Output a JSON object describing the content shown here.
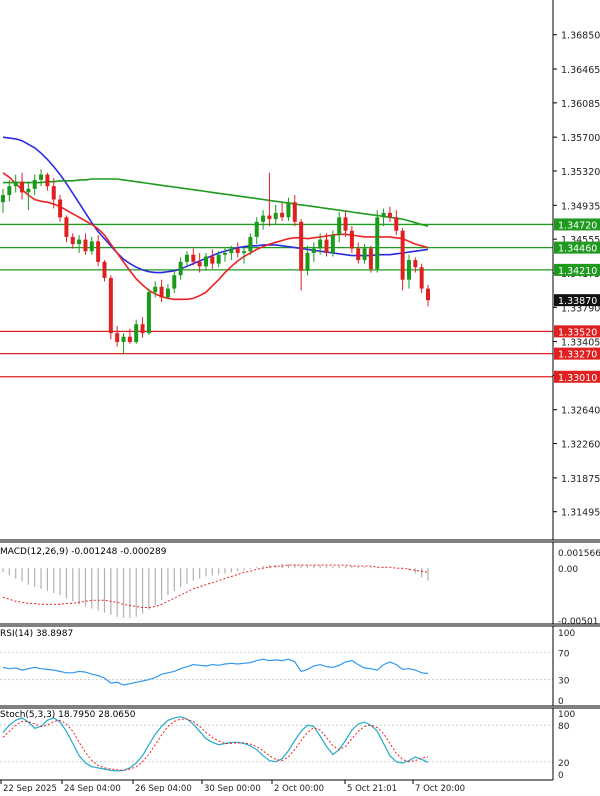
{
  "colors": {
    "bull": "#1a9a1a",
    "bear": "#e02020",
    "ma_blue": "#2a2ae6",
    "ma_green": "#1f9a1f",
    "ma_red": "#ee2222",
    "support_line": "#e02020",
    "resistance_line": "#1f9a1f",
    "current_price_label": "#111111",
    "axis_text": "#222222",
    "macd_hist": "#b0b0b0",
    "macd_signal": "#ee2222",
    "rsi_line": "#3399ee",
    "stoch_main": "#22aacc",
    "stoch_signal": "#ee2222"
  },
  "chart_data": [
    {
      "type": "candlestick",
      "title": "",
      "price_ticks": [
        "1.36850",
        "1.36465",
        "1.36085",
        "1.35700",
        "1.35320",
        "1.34935",
        "1.34555",
        "1.34175",
        "1.33790",
        "1.33405",
        "1.33025",
        "1.32640",
        "1.32260",
        "1.31875",
        "1.31495"
      ],
      "ylim": [
        1.312,
        1.3715
      ],
      "x_labels": [
        "22 Sep 2025",
        "24 Sep 04:00",
        "26 Sep 04:00",
        "30 Sep 00:00",
        "2 Oct 00:00",
        "5 Oct 21:01",
        "7 Oct 20:00"
      ],
      "horizontal_levels": [
        {
          "value": 1.3472,
          "label": "1.34720",
          "kind": "resistance"
        },
        {
          "value": 1.3446,
          "label": "1.34460",
          "kind": "resistance"
        },
        {
          "value": 1.3421,
          "label": "1.34210",
          "kind": "resistance"
        },
        {
          "value": 1.3352,
          "label": "1.33520",
          "kind": "support"
        },
        {
          "value": 1.3327,
          "label": "1.33270",
          "kind": "support"
        },
        {
          "value": 1.3301,
          "label": "1.33010",
          "kind": "support"
        }
      ],
      "current_price": {
        "value": 1.3387,
        "label": "1.33870"
      },
      "candles": [
        {
          "o": 1.3497,
          "h": 1.3512,
          "l": 1.3485,
          "c": 1.3505
        },
        {
          "o": 1.3505,
          "h": 1.3522,
          "l": 1.3498,
          "c": 1.3515
        },
        {
          "o": 1.3515,
          "h": 1.3528,
          "l": 1.3508,
          "c": 1.352
        },
        {
          "o": 1.352,
          "h": 1.353,
          "l": 1.35,
          "c": 1.3508
        },
        {
          "o": 1.3508,
          "h": 1.352,
          "l": 1.3488,
          "c": 1.3512
        },
        {
          "o": 1.3512,
          "h": 1.3528,
          "l": 1.3505,
          "c": 1.3522
        },
        {
          "o": 1.3522,
          "h": 1.3534,
          "l": 1.3515,
          "c": 1.3528
        },
        {
          "o": 1.3528,
          "h": 1.353,
          "l": 1.351,
          "c": 1.3515
        },
        {
          "o": 1.3515,
          "h": 1.3524,
          "l": 1.349,
          "c": 1.35
        },
        {
          "o": 1.35,
          "h": 1.3505,
          "l": 1.3475,
          "c": 1.348
        },
        {
          "o": 1.348,
          "h": 1.3482,
          "l": 1.3452,
          "c": 1.3458
        },
        {
          "o": 1.3458,
          "h": 1.3462,
          "l": 1.3445,
          "c": 1.345
        },
        {
          "o": 1.345,
          "h": 1.346,
          "l": 1.344,
          "c": 1.3455
        },
        {
          "o": 1.3455,
          "h": 1.3462,
          "l": 1.3438,
          "c": 1.3442
        },
        {
          "o": 1.3442,
          "h": 1.3458,
          "l": 1.3438,
          "c": 1.3453
        },
        {
          "o": 1.3453,
          "h": 1.346,
          "l": 1.3425,
          "c": 1.343
        },
        {
          "o": 1.343,
          "h": 1.3432,
          "l": 1.3408,
          "c": 1.3412
        },
        {
          "o": 1.3412,
          "h": 1.3415,
          "l": 1.3343,
          "c": 1.335
        },
        {
          "o": 1.335,
          "h": 1.3358,
          "l": 1.3335,
          "c": 1.334
        },
        {
          "o": 1.334,
          "h": 1.335,
          "l": 1.3326,
          "c": 1.3346
        },
        {
          "o": 1.3346,
          "h": 1.3355,
          "l": 1.3338,
          "c": 1.334
        },
        {
          "o": 1.334,
          "h": 1.3365,
          "l": 1.3338,
          "c": 1.336
        },
        {
          "o": 1.336,
          "h": 1.3368,
          "l": 1.3345,
          "c": 1.335
        },
        {
          "o": 1.335,
          "h": 1.34,
          "l": 1.3348,
          "c": 1.3396
        },
        {
          "o": 1.3396,
          "h": 1.3408,
          "l": 1.339,
          "c": 1.3402
        },
        {
          "o": 1.3402,
          "h": 1.341,
          "l": 1.3385,
          "c": 1.339
        },
        {
          "o": 1.339,
          "h": 1.3405,
          "l": 1.3388,
          "c": 1.34
        },
        {
          "o": 1.34,
          "h": 1.342,
          "l": 1.3395,
          "c": 1.3415
        },
        {
          "o": 1.3415,
          "h": 1.3435,
          "l": 1.341,
          "c": 1.343
        },
        {
          "o": 1.343,
          "h": 1.3442,
          "l": 1.3425,
          "c": 1.3438
        },
        {
          "o": 1.3438,
          "h": 1.3445,
          "l": 1.3426,
          "c": 1.343
        },
        {
          "o": 1.343,
          "h": 1.344,
          "l": 1.3418,
          "c": 1.3425
        },
        {
          "o": 1.3425,
          "h": 1.344,
          "l": 1.342,
          "c": 1.3436
        },
        {
          "o": 1.3436,
          "h": 1.3444,
          "l": 1.3422,
          "c": 1.3428
        },
        {
          "o": 1.3428,
          "h": 1.3442,
          "l": 1.3424,
          "c": 1.3438
        },
        {
          "o": 1.3438,
          "h": 1.3446,
          "l": 1.343,
          "c": 1.344
        },
        {
          "o": 1.344,
          "h": 1.3448,
          "l": 1.3432,
          "c": 1.3445
        },
        {
          "o": 1.3445,
          "h": 1.3452,
          "l": 1.3435,
          "c": 1.344
        },
        {
          "o": 1.344,
          "h": 1.3446,
          "l": 1.3428,
          "c": 1.3442
        },
        {
          "o": 1.3442,
          "h": 1.3462,
          "l": 1.3438,
          "c": 1.3458
        },
        {
          "o": 1.3458,
          "h": 1.348,
          "l": 1.345,
          "c": 1.3475
        },
        {
          "o": 1.3475,
          "h": 1.3488,
          "l": 1.3466,
          "c": 1.3482
        },
        {
          "o": 1.3482,
          "h": 1.353,
          "l": 1.347,
          "c": 1.3478
        },
        {
          "o": 1.3478,
          "h": 1.3494,
          "l": 1.3472,
          "c": 1.3485
        },
        {
          "o": 1.3485,
          "h": 1.3496,
          "l": 1.3476,
          "c": 1.348
        },
        {
          "o": 1.348,
          "h": 1.3502,
          "l": 1.3476,
          "c": 1.3497
        },
        {
          "o": 1.3497,
          "h": 1.3505,
          "l": 1.347,
          "c": 1.3475
        },
        {
          "o": 1.3475,
          "h": 1.3478,
          "l": 1.3398,
          "c": 1.342
        },
        {
          "o": 1.342,
          "h": 1.3448,
          "l": 1.3415,
          "c": 1.344
        },
        {
          "o": 1.344,
          "h": 1.3452,
          "l": 1.343,
          "c": 1.3445
        },
        {
          "o": 1.3445,
          "h": 1.3462,
          "l": 1.3438,
          "c": 1.3455
        },
        {
          "o": 1.3455,
          "h": 1.3462,
          "l": 1.3436,
          "c": 1.344
        },
        {
          "o": 1.344,
          "h": 1.3465,
          "l": 1.3436,
          "c": 1.346
        },
        {
          "o": 1.346,
          "h": 1.3486,
          "l": 1.3452,
          "c": 1.348
        },
        {
          "o": 1.348,
          "h": 1.3487,
          "l": 1.3458,
          "c": 1.3465
        },
        {
          "o": 1.3465,
          "h": 1.347,
          "l": 1.344,
          "c": 1.3445
        },
        {
          "o": 1.3445,
          "h": 1.3452,
          "l": 1.3428,
          "c": 1.3432
        },
        {
          "o": 1.3432,
          "h": 1.345,
          "l": 1.3428,
          "c": 1.3445
        },
        {
          "o": 1.3445,
          "h": 1.3448,
          "l": 1.3418,
          "c": 1.3422
        },
        {
          "o": 1.3422,
          "h": 1.3488,
          "l": 1.3418,
          "c": 1.348
        },
        {
          "o": 1.348,
          "h": 1.349,
          "l": 1.347,
          "c": 1.3485
        },
        {
          "o": 1.3485,
          "h": 1.3492,
          "l": 1.3475,
          "c": 1.348
        },
        {
          "o": 1.348,
          "h": 1.3488,
          "l": 1.346,
          "c": 1.3465
        },
        {
          "o": 1.3465,
          "h": 1.3468,
          "l": 1.3398,
          "c": 1.341
        },
        {
          "o": 1.341,
          "h": 1.3438,
          "l": 1.34,
          "c": 1.3432
        },
        {
          "o": 1.3432,
          "h": 1.3435,
          "l": 1.3418,
          "c": 1.3424
        },
        {
          "o": 1.3424,
          "h": 1.3428,
          "l": 1.3395,
          "c": 1.34
        },
        {
          "o": 1.34,
          "h": 1.3404,
          "l": 1.338,
          "c": 1.3387
        }
      ],
      "moving_averages": [
        {
          "color_key": "ma_blue",
          "values": [
            1.357,
            1.3569,
            1.3568,
            1.3566,
            1.3562,
            1.3558,
            1.3552,
            1.3545,
            1.3537,
            1.3528,
            1.3518,
            1.3507,
            1.3496,
            1.3485,
            1.3474,
            1.3464,
            1.3456,
            1.3448,
            1.344,
            1.3433,
            1.3428,
            1.3424,
            1.3421,
            1.3419,
            1.3418,
            1.3418,
            1.3419,
            1.342,
            1.3422,
            1.3425,
            1.3428,
            1.3431,
            1.3434,
            1.3437,
            1.344,
            1.3442,
            1.3444,
            1.3446,
            1.3447,
            1.3448,
            1.3448,
            1.3449,
            1.3449,
            1.3449,
            1.3448,
            1.3447,
            1.3446,
            1.3445,
            1.3444,
            1.3443,
            1.3442,
            1.3441,
            1.344,
            1.3439,
            1.3438,
            1.3437,
            1.3437,
            1.3437,
            1.3437,
            1.3438,
            1.3438,
            1.3438,
            1.3439,
            1.344,
            1.3441,
            1.3442,
            1.3443,
            1.3444
          ]
        },
        {
          "color_key": "ma_green",
          "values": [
            1.3519,
            1.3519,
            1.3519,
            1.3519,
            1.3519,
            1.3519,
            1.3519,
            1.352,
            1.352,
            1.3521,
            1.3521,
            1.3521,
            1.3522,
            1.3522,
            1.3523,
            1.3523,
            1.3523,
            1.3523,
            1.3523,
            1.3522,
            1.3521,
            1.352,
            1.3519,
            1.3518,
            1.3517,
            1.3516,
            1.3515,
            1.3514,
            1.3513,
            1.3512,
            1.3511,
            1.351,
            1.3509,
            1.3508,
            1.3507,
            1.3506,
            1.3505,
            1.3504,
            1.3503,
            1.3502,
            1.3501,
            1.35,
            1.3499,
            1.3498,
            1.3497,
            1.3496,
            1.3495,
            1.3494,
            1.3493,
            1.3492,
            1.3491,
            1.349,
            1.3489,
            1.3488,
            1.3487,
            1.3486,
            1.3485,
            1.3484,
            1.3483,
            1.3482,
            1.3481,
            1.348,
            1.3479,
            1.3478,
            1.3476,
            1.3474,
            1.3472,
            1.347
          ]
        },
        {
          "color_key": "ma_red",
          "values": [
            1.353,
            1.3525,
            1.3518,
            1.3511,
            1.3505,
            1.35,
            1.3498,
            1.3497,
            1.3495,
            1.3492,
            1.3488,
            1.3484,
            1.348,
            1.3476,
            1.3472,
            1.3467,
            1.346,
            1.345,
            1.344,
            1.343,
            1.342,
            1.3411,
            1.3404,
            1.3398,
            1.3394,
            1.3391,
            1.3389,
            1.3388,
            1.3388,
            1.3388,
            1.3389,
            1.3392,
            1.3396,
            1.3403,
            1.341,
            1.3418,
            1.3425,
            1.3431,
            1.3436,
            1.344,
            1.3444,
            1.3447,
            1.345,
            1.3452,
            1.3454,
            1.3456,
            1.3457,
            1.3457,
            1.3456,
            1.3457,
            1.3458,
            1.3459,
            1.346,
            1.3461,
            1.3461,
            1.346,
            1.3459,
            1.3458,
            1.3458,
            1.3458,
            1.3458,
            1.3458,
            1.3457,
            1.3456,
            1.3453,
            1.345,
            1.3448,
            1.3446
          ]
        }
      ]
    },
    {
      "type": "bar",
      "label": "MACD(12,26,9) -0.001248 -0.000289",
      "y_ticks": [
        "0.001566",
        "0.00",
        "-0.00501"
      ],
      "ylim": [
        -0.00501,
        0.001566
      ],
      "values": [
        -0.0004,
        -0.0007,
        -0.001,
        -0.0013,
        -0.0016,
        -0.0018,
        -0.002,
        -0.0022,
        -0.0024,
        -0.0026,
        -0.0029,
        -0.0032,
        -0.0035,
        -0.0037,
        -0.0039,
        -0.0041,
        -0.0043,
        -0.0045,
        -0.0047,
        -0.0048,
        -0.0048,
        -0.0047,
        -0.0044,
        -0.004,
        -0.0036,
        -0.0031,
        -0.0026,
        -0.0022,
        -0.0018,
        -0.0015,
        -0.0012,
        -0.001,
        -0.0008,
        -0.0007,
        -0.0006,
        -0.0005,
        -0.0004,
        -0.0003,
        -0.0002,
        -0.0001,
        0.0001,
        0.0002,
        0.0003,
        0.0003,
        0.0004,
        0.0004,
        0.0004,
        0.0003,
        0.0003,
        0.0003,
        0.0003,
        0.0002,
        0.0002,
        0.0002,
        0.0002,
        0.0002,
        0.0001,
        0.0001,
        0.0001,
        0.0001,
        0.0001,
        0.0,
        0.0,
        -0.0001,
        -0.0002,
        -0.0005,
        -0.0009,
        -0.0012
      ],
      "signal": [
        -0.0028,
        -0.003,
        -0.0032,
        -0.0033,
        -0.0034,
        -0.0034,
        -0.0035,
        -0.0035,
        -0.0035,
        -0.0035,
        -0.0034,
        -0.0034,
        -0.0033,
        -0.0032,
        -0.0031,
        -0.0031,
        -0.0031,
        -0.0032,
        -0.0033,
        -0.0035,
        -0.0036,
        -0.0037,
        -0.0038,
        -0.0038,
        -0.0037,
        -0.0035,
        -0.0032,
        -0.0029,
        -0.0026,
        -0.0023,
        -0.002,
        -0.0018,
        -0.0016,
        -0.0014,
        -0.0012,
        -0.001,
        -0.0008,
        -0.0006,
        -0.0004,
        -0.0003,
        -0.0001,
        0.0,
        0.0001,
        0.0002,
        0.0002,
        0.0003,
        0.0003,
        0.0003,
        0.0003,
        0.0003,
        0.0003,
        0.0003,
        0.0003,
        0.0003,
        0.0003,
        0.0002,
        0.0002,
        0.0002,
        0.0002,
        0.0001,
        0.0001,
        0.0001,
        0.0,
        0.0,
        -0.0001,
        -0.0002,
        -0.0003,
        -0.0004
      ]
    },
    {
      "type": "line",
      "label": "RSI(14) 38.8987",
      "y_ticks": [
        "100",
        "70",
        "30",
        "0"
      ],
      "ylim": [
        0,
        100
      ],
      "values": [
        48,
        46,
        47,
        44,
        46,
        48,
        46,
        45,
        44,
        42,
        40,
        40,
        42,
        41,
        38,
        36,
        32,
        25,
        26,
        22,
        24,
        26,
        28,
        30,
        33,
        38,
        40,
        42,
        46,
        49,
        52,
        51,
        50,
        52,
        51,
        53,
        54,
        53,
        54,
        55,
        58,
        60,
        58,
        59,
        58,
        60,
        56,
        42,
        45,
        50,
        52,
        49,
        48,
        51,
        56,
        58,
        52,
        47,
        46,
        44,
        52,
        56,
        52,
        45,
        46,
        44,
        40,
        39
      ]
    },
    {
      "type": "line",
      "label": "Stoch(5,3,3) 18.7950 28.0650",
      "y_ticks": [
        "100",
        "80",
        "20",
        "0"
      ],
      "ylim": [
        0,
        100
      ],
      "main": [
        68,
        80,
        88,
        92,
        85,
        75,
        78,
        88,
        92,
        85,
        70,
        50,
        30,
        18,
        12,
        10,
        8,
        6,
        5,
        6,
        10,
        18,
        30,
        48,
        65,
        78,
        88,
        92,
        94,
        90,
        82,
        70,
        58,
        52,
        48,
        50,
        52,
        52,
        50,
        46,
        40,
        30,
        22,
        20,
        25,
        38,
        55,
        70,
        80,
        78,
        62,
        45,
        32,
        40,
        55,
        72,
        82,
        85,
        80,
        70,
        50,
        30,
        20,
        18,
        22,
        28,
        24,
        19
      ],
      "signal": [
        60,
        70,
        80,
        86,
        86,
        82,
        78,
        80,
        86,
        88,
        82,
        70,
        52,
        35,
        22,
        14,
        10,
        8,
        7,
        6,
        8,
        12,
        20,
        32,
        48,
        64,
        78,
        86,
        90,
        90,
        86,
        78,
        68,
        60,
        54,
        50,
        50,
        51,
        51,
        49,
        45,
        38,
        30,
        24,
        22,
        28,
        40,
        55,
        68,
        76,
        72,
        60,
        46,
        40,
        45,
        58,
        70,
        78,
        80,
        76,
        66,
        50,
        34,
        24,
        20,
        22,
        26,
        28
      ]
    }
  ]
}
